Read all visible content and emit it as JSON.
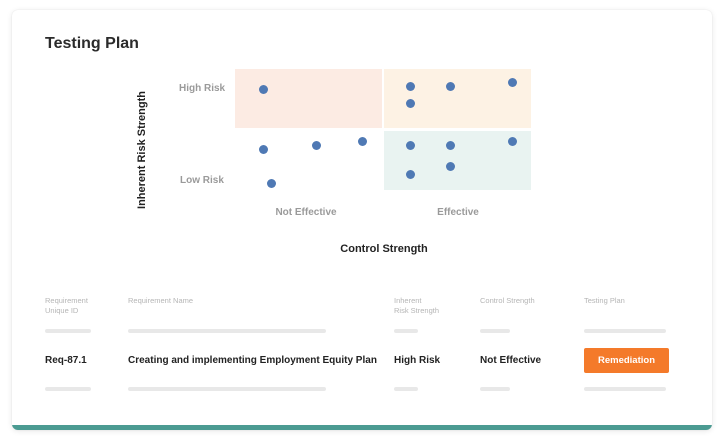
{
  "page": {
    "title": "Testing Plan"
  },
  "matrix": {
    "y_axis_label": "Inherent Risk Strength",
    "x_axis_label": "Control Strength",
    "rows": [
      "High Risk",
      "Low Risk"
    ],
    "columns": [
      "Not Effective",
      "Effective"
    ],
    "colors": {
      "high_risk_not_effective": "#fcebe3",
      "high_risk_effective": "#fdf2e4",
      "low_risk_effective": "#e9f3f1",
      "dot": "#4f79b4"
    },
    "points": [
      {
        "row": "High Risk",
        "column": "Not Effective",
        "count": 1
      },
      {
        "row": "High Risk",
        "column": "Effective",
        "count": 4
      },
      {
        "row": "Low Risk",
        "column": "Not Effective",
        "count": 4
      },
      {
        "row": "Low Risk",
        "column": "Effective",
        "count": 5
      }
    ]
  },
  "table": {
    "headers": {
      "id": "Requirement\nUnique ID",
      "name": "Requirement Name",
      "risk": "Inherent\nRisk Strength",
      "control": "Control Strength",
      "plan": "Testing Plan"
    },
    "row": {
      "id": "Req-87.1",
      "name": "Creating and implementing Employment Equity Plan",
      "risk": "High Risk",
      "control": "Not Effective",
      "plan": "Remediation"
    },
    "accent_color": "#f47a2a"
  },
  "footer": {
    "accent_color": "#4b9b92"
  }
}
